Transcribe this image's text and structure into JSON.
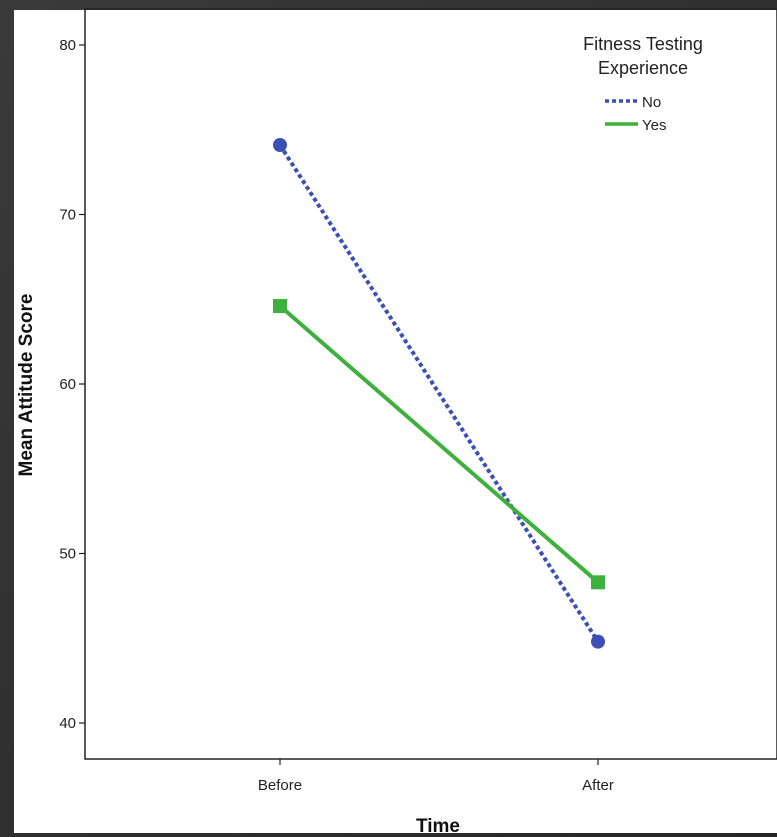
{
  "chart_data": {
    "type": "line",
    "xlabel": "Time",
    "ylabel": "Mean Attitude Score",
    "categories": [
      "Before",
      "After"
    ],
    "ylim": [
      38,
      83
    ],
    "yticks": [
      40,
      50,
      60,
      70,
      80
    ],
    "grid": false,
    "legend": {
      "title_line1": "Fitness Testing",
      "title_line2": "Experience",
      "placement": "top-right"
    },
    "series": [
      {
        "name": "No",
        "values": [
          74.1,
          44.8
        ],
        "color": "#3b4fb5",
        "dash": "dotted",
        "marker": "circle"
      },
      {
        "name": "Yes",
        "values": [
          64.6,
          48.3
        ],
        "color": "#3db03d",
        "dash": "solid",
        "marker": "square"
      }
    ]
  }
}
